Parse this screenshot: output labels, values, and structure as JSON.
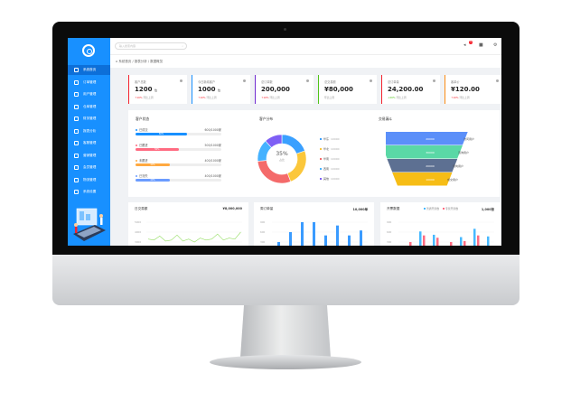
{
  "sidebar": {
    "items": [
      {
        "label": "系统首页",
        "active": true
      },
      {
        "label": "订单管理"
      },
      {
        "label": "用户管理"
      },
      {
        "label": "仓库管理"
      },
      {
        "label": "财务管理"
      },
      {
        "label": "报表分析"
      },
      {
        "label": "客服管理"
      },
      {
        "label": "营销管理"
      },
      {
        "label": "会员管理"
      },
      {
        "label": "物流管理"
      },
      {
        "label": "系统设置"
      }
    ]
  },
  "header": {
    "search_placeholder": "输入搜索内容",
    "search_icon": "search-icon",
    "notification_count": "5"
  },
  "breadcrumb": "系统首页 / 报表分析 / 数据概览",
  "stats": [
    {
      "title": "客户总数",
      "value": "1200",
      "unit": "位",
      "trend": "↑10%",
      "note": "环比上周",
      "color": "#f5222d"
    },
    {
      "title": "今日新增客户",
      "value": "1000",
      "unit": "位",
      "trend": "↑10%",
      "note": "环比上周",
      "color": "#1890ff"
    },
    {
      "title": "总订单数",
      "value": "200,000",
      "unit": "",
      "trend": "↑10%",
      "note": "环比上周",
      "color": "#722ed1"
    },
    {
      "title": "总交易额",
      "value": "¥80,000",
      "unit": "",
      "trend": "",
      "note": "环比上周",
      "color": "#52c41a"
    },
    {
      "title": "总订单量",
      "value": "24,200.00",
      "unit": "",
      "trend": "↓20%",
      "note": "环比上周",
      "color": "#f5222d"
    },
    {
      "title": "客单价",
      "value": "¥120.00",
      "unit": "",
      "trend": "↑10%",
      "note": "环比上周",
      "color": "#fa8c16"
    }
  ],
  "customer_status": {
    "title": "客户状态",
    "items": [
      {
        "label": "已成交",
        "value": "600/1000家",
        "pct": 60,
        "color": "#1890ff"
      },
      {
        "label": "已跟进",
        "value": "500/1000家",
        "pct": 50,
        "color": "#ff6b81"
      },
      {
        "label": "未跟进",
        "value": "400/1000家",
        "pct": 40,
        "color": "#ffa940"
      },
      {
        "label": "已流失",
        "value": "400/1000家",
        "pct": 40,
        "color": "#6b9cff"
      }
    ]
  },
  "customer_distribution": {
    "title": "客户分布",
    "center_value": "35%",
    "center_label": "占比",
    "chart_data": {
      "type": "pie",
      "categories": [
        "华东",
        "华北",
        "华南",
        "西南",
        "其他"
      ],
      "values": [
        20,
        25,
        30,
        15,
        12
      ],
      "colors": [
        "#3aa0ff",
        "#fbc73b",
        "#f46a6a",
        "#45b2ff",
        "#7e5ff5"
      ],
      "labels": [
        "10000",
        "10000",
        "10000",
        "10000",
        "10000"
      ]
    }
  },
  "funnel": {
    "title": "交易漏斗",
    "chart_data": {
      "type": "funnel",
      "values": [
        "20000",
        "30000",
        "20000",
        "10000"
      ],
      "categories": [
        "访问用户",
        "咨询用户",
        "意向用户",
        "成交用户"
      ],
      "colors": [
        "#5b8ff9",
        "#5ad8a6",
        "#5d7092",
        "#f6bd16"
      ]
    }
  },
  "daily": {
    "title": "日交易额",
    "total": "¥8,000,000",
    "chart_data": {
      "type": "line",
      "yticks": [
        "5000",
        "4000",
        "3000"
      ],
      "values": [
        3300,
        3200,
        3600,
        3100,
        3200,
        3700,
        3100,
        3300,
        3000,
        3400,
        3200,
        3300,
        3800,
        3200,
        3400,
        3300,
        4000
      ],
      "color": "#95de64"
    }
  },
  "weekly": {
    "title": "周订单量",
    "total": "10,000单",
    "chart_data": {
      "type": "bar",
      "yticks": [
        "900",
        "600",
        "300"
      ],
      "values": [
        300,
        600,
        900,
        900,
        500,
        800,
        500,
        650
      ],
      "color": "#3a9bff"
    }
  },
  "invoice": {
    "title": "开票数据",
    "total": "1,000张",
    "chart_data": {
      "type": "bar",
      "yticks": [
        "900",
        "600",
        "300"
      ],
      "series": [
        {
          "name": "普通开票数",
          "values": [
            150,
            620,
            520,
            60,
            450,
            700,
            470
          ],
          "color": "#47b9ff"
        },
        {
          "name": "专票开票数",
          "values": [
            300,
            500,
            430,
            300,
            330,
            500,
            120
          ],
          "color": "#ff6b81"
        }
      ]
    }
  }
}
